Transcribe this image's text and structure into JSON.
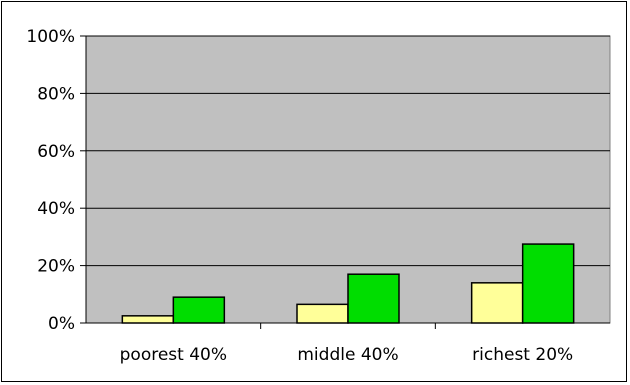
{
  "chart_data": {
    "type": "bar",
    "title": "",
    "xlabel": "",
    "ylabel": "",
    "categories": [
      "poorest 40%",
      "middle 40%",
      "richest 20%"
    ],
    "series": [
      {
        "values": [
          2.5,
          6.5,
          14
        ],
        "color": "#ffff99"
      },
      {
        "values": [
          9,
          17,
          27.5
        ],
        "color": "#00dd00"
      }
    ],
    "ylim": [
      0,
      100
    ],
    "yticks": [
      0,
      20,
      40,
      60,
      80,
      100
    ],
    "ytick_labels": [
      "0%",
      "20%",
      "40%",
      "60%",
      "80%",
      "100%"
    ],
    "grid": true,
    "plot_background": "#c0c0c0",
    "legend": "none"
  }
}
